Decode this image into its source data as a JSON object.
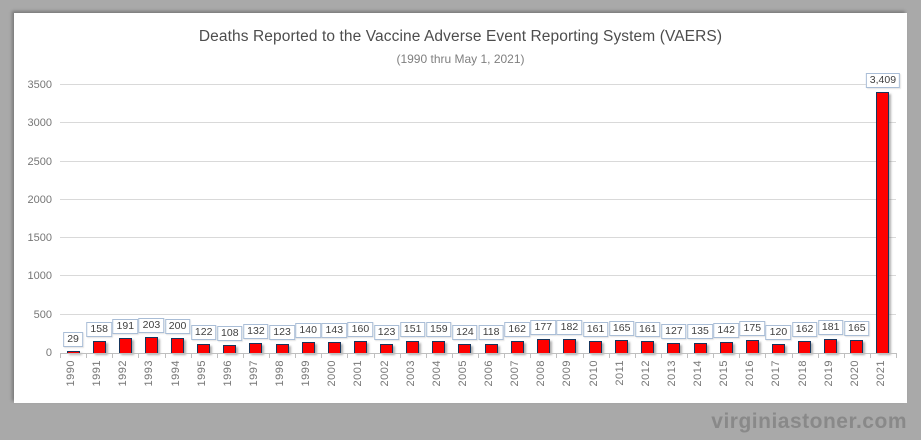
{
  "chart_data": {
    "type": "bar",
    "title": "Deaths Reported to the Vaccine Adverse Event Reporting System (VAERS)",
    "subtitle": "(1990 thru May 1, 2021)",
    "categories": [
      "1990",
      "1991",
      "1992",
      "1993",
      "1994",
      "1995",
      "1996",
      "1997",
      "1998",
      "1999",
      "2000",
      "2001",
      "2002",
      "2003",
      "2004",
      "2005",
      "2006",
      "2007",
      "2008",
      "2009",
      "2010",
      "2011",
      "2012",
      "2013",
      "2014",
      "2015",
      "2016",
      "2017",
      "2018",
      "2019",
      "2020",
      "2021"
    ],
    "values": [
      29,
      158,
      191,
      203,
      200,
      122,
      108,
      132,
      123,
      140,
      143,
      160,
      123,
      151,
      159,
      124,
      118,
      162,
      177,
      182,
      161,
      165,
      161,
      127,
      135,
      142,
      175,
      120,
      162,
      181,
      165,
      3409
    ],
    "data_labels": [
      "29",
      "158",
      "191",
      "203",
      "200",
      "122",
      "108",
      "132",
      "123",
      "140",
      "143",
      "160",
      "123",
      "151",
      "159",
      "124",
      "118",
      "162",
      "177",
      "182",
      "161",
      "165",
      "161",
      "127",
      "135",
      "142",
      "175",
      "120",
      "162",
      "181",
      "165",
      "3,409"
    ],
    "xlabel": "",
    "ylabel": "",
    "ylim": [
      0,
      3500
    ],
    "ytick_interval": 500,
    "yticks": [
      "0",
      "500",
      "1000",
      "1500",
      "2000",
      "2500",
      "3000",
      "3500"
    ],
    "grid": true,
    "legend": "none",
    "bar_color": "#fe0000",
    "bar_border_color": "#16355c",
    "label_box_border_color": "#a9bdd6",
    "gridline_color": "#d9d9d9"
  },
  "watermark": "virginiastoner.com"
}
